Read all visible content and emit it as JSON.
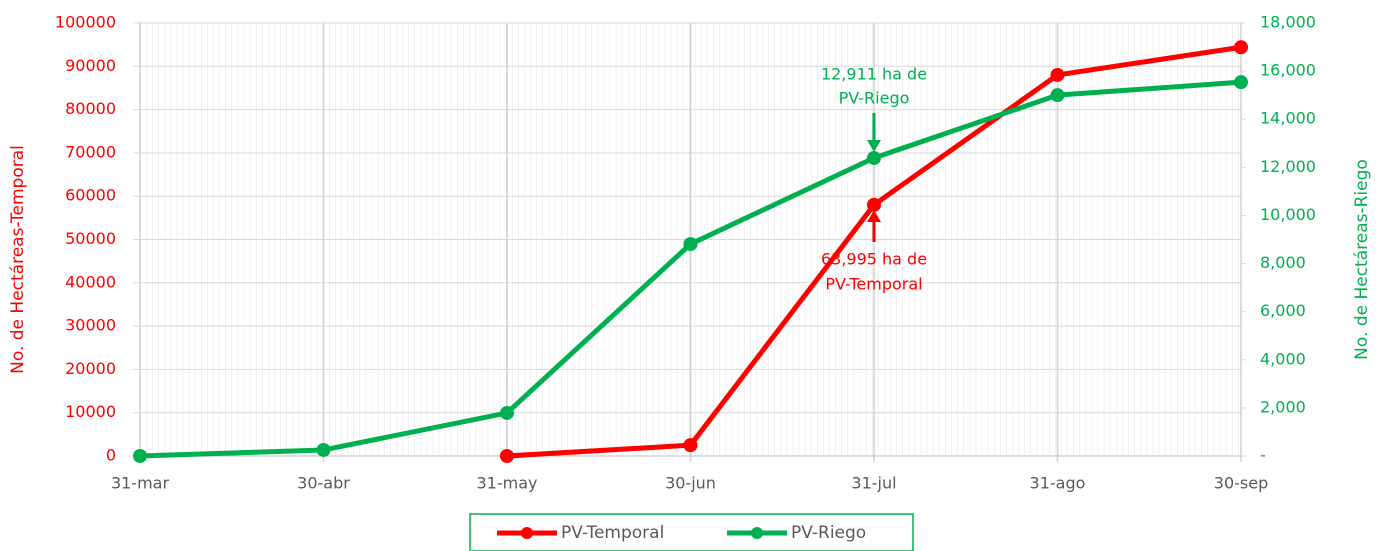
{
  "chart_data": {
    "type": "line",
    "categories": [
      "31-mar",
      "30-abr",
      "31-may",
      "30-jun",
      "31-jul",
      "31-ago",
      "30-sep"
    ],
    "series": [
      {
        "name": "PV-Temporal",
        "color": "#ff0000",
        "axis": "y",
        "values": [
          null,
          null,
          0,
          2500,
          58000,
          88000,
          94400
        ]
      },
      {
        "name": "PV-Riego",
        "color": "#00b050",
        "axis": "y2",
        "values": [
          0,
          250,
          1790,
          8810,
          12390,
          15000,
          15540
        ]
      }
    ],
    "ylabel": "No. de Hectáreas-Temporal",
    "y2label": "No. de Hectáreas-Riego",
    "ylim": [
      0,
      100000
    ],
    "yticks": [
      0,
      10000,
      20000,
      30000,
      40000,
      50000,
      60000,
      70000,
      80000,
      90000,
      100000
    ],
    "y2lim": [
      0,
      18000
    ],
    "y2ticks": [
      {
        "value": 0,
        "label": "-"
      },
      {
        "value": 2000,
        "label": "2,000"
      },
      {
        "value": 4000,
        "label": "4,000"
      },
      {
        "value": 6000,
        "label": "6,000"
      },
      {
        "value": 8000,
        "label": "8,000"
      },
      {
        "value": 10000,
        "label": "10,000"
      },
      {
        "value": 12000,
        "label": "12,000"
      },
      {
        "value": 14000,
        "label": "14,000"
      },
      {
        "value": 16000,
        "label": "16,000"
      },
      {
        "value": 18000,
        "label": "18,000"
      }
    ],
    "annotations": [
      {
        "text": [
          "12,911 ha de",
          "PV-Riego"
        ],
        "color": "#00b050"
      },
      {
        "text": [
          "63,995 ha de",
          "PV-Temporal"
        ],
        "color": "#ff0000"
      }
    ],
    "grid": true,
    "legend": "bottom"
  }
}
